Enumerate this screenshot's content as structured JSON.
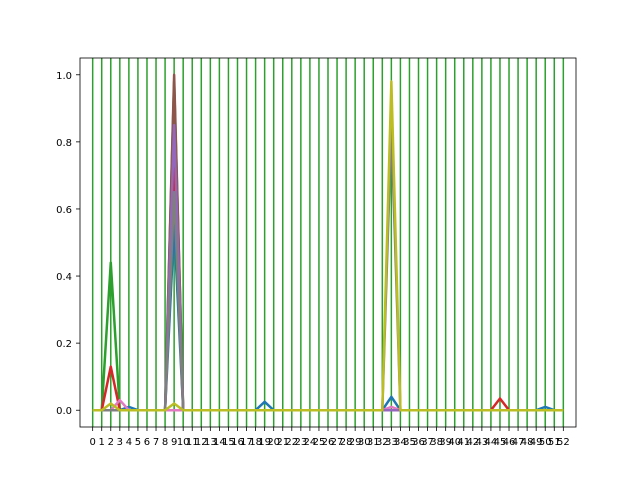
{
  "chart_data": {
    "type": "line",
    "title": "",
    "xlabel": "",
    "ylabel": "",
    "xlim": [
      -1.4,
      53.4
    ],
    "ylim": [
      -0.05,
      1.05
    ],
    "x_ticks": [
      0,
      1,
      2,
      3,
      4,
      5,
      6,
      7,
      8,
      9,
      10,
      11,
      12,
      13,
      14,
      15,
      16,
      17,
      18,
      19,
      20,
      21,
      22,
      23,
      24,
      25,
      26,
      27,
      28,
      29,
      30,
      31,
      32,
      33,
      34,
      35,
      36,
      37,
      38,
      39,
      40,
      41,
      42,
      43,
      44,
      45,
      46,
      47,
      48,
      49,
      50,
      51,
      52
    ],
    "x_tick_labels": [
      "0",
      "1",
      "2",
      "3",
      "4",
      "5",
      "6",
      "7",
      "8",
      "9",
      "10",
      "11",
      "12",
      "13",
      "14",
      "15",
      "16",
      "17",
      "18",
      "19",
      "20",
      "21",
      "22",
      "23",
      "24",
      "25",
      "26",
      "27",
      "28",
      "29",
      "30",
      "31",
      "32",
      "33",
      "34",
      "35",
      "36",
      "37",
      "38",
      "39",
      "40",
      "41",
      "42",
      "43",
      "44",
      "45",
      "46",
      "47",
      "48",
      "49",
      "50",
      "51",
      "52"
    ],
    "y_ticks": [
      0.0,
      0.2,
      0.4,
      0.6,
      0.8,
      1.0
    ],
    "y_tick_labels": [
      "0.0",
      "0.2",
      "0.4",
      "0.6",
      "0.8",
      "1.0"
    ],
    "vertical_lines": {
      "x": [
        0,
        1,
        2,
        3,
        4,
        5,
        6,
        7,
        8,
        9,
        10,
        11,
        12,
        13,
        14,
        15,
        16,
        17,
        18,
        19,
        20,
        21,
        22,
        23,
        24,
        25,
        26,
        27,
        28,
        29,
        30,
        31,
        32,
        33,
        34,
        35,
        36,
        37,
        38,
        39,
        40,
        41,
        42,
        43,
        44,
        45,
        46,
        47,
        48,
        49,
        50,
        51,
        52
      ],
      "color": "#2ca02c"
    },
    "series": [
      {
        "color": "#1f77b4",
        "points": [
          [
            3,
            0
          ],
          [
            4,
            0.01
          ],
          [
            5,
            0
          ],
          [
            8,
            0
          ],
          [
            9,
            0.55
          ],
          [
            10,
            0
          ],
          [
            18,
            0
          ],
          [
            19,
            0.025
          ],
          [
            20,
            0
          ],
          [
            32,
            0
          ],
          [
            33,
            0.04
          ],
          [
            34,
            0
          ],
          [
            49,
            0
          ],
          [
            50,
            0.01
          ],
          [
            51,
            0
          ]
        ]
      },
      {
        "color": "#2ca02c",
        "points": [
          [
            1,
            0
          ],
          [
            2,
            0.44
          ],
          [
            3,
            0
          ],
          [
            8,
            0
          ],
          [
            9,
            0.98
          ],
          [
            10,
            0
          ]
        ]
      },
      {
        "color": "#d62728",
        "points": [
          [
            1,
            0
          ],
          [
            2,
            0.13
          ],
          [
            3,
            0
          ],
          [
            8,
            0
          ],
          [
            9,
            0.72
          ],
          [
            10,
            0
          ],
          [
            44,
            0
          ],
          [
            45,
            0.035
          ],
          [
            46,
            0
          ]
        ]
      },
      {
        "color": "#8c564b",
        "points": [
          [
            8,
            0
          ],
          [
            9,
            1.0
          ],
          [
            10,
            0
          ]
        ]
      },
      {
        "color": "#e377c2",
        "points": [
          [
            2,
            0
          ],
          [
            3,
            0.03
          ],
          [
            4,
            0
          ],
          [
            32,
            0
          ],
          [
            33,
            0.01
          ],
          [
            34,
            0
          ]
        ]
      },
      {
        "color": "#9467bd",
        "points": [
          [
            8,
            0
          ],
          [
            9,
            0.85
          ],
          [
            10,
            0
          ]
        ]
      },
      {
        "color": "#7f7f7f",
        "points": [
          [
            8,
            0
          ],
          [
            9,
            0.65
          ],
          [
            10,
            0
          ],
          [
            32,
            0
          ],
          [
            33,
            0.85
          ],
          [
            34,
            0
          ]
        ]
      },
      {
        "color": "#bcbd22",
        "points": [
          [
            1,
            0
          ],
          [
            2,
            0.02
          ],
          [
            3,
            0
          ],
          [
            8,
            0
          ],
          [
            9,
            0.02
          ],
          [
            10,
            0
          ],
          [
            32,
            0
          ],
          [
            33,
            0.98
          ],
          [
            34,
            0
          ]
        ]
      }
    ],
    "grid": false,
    "legend": "none"
  }
}
